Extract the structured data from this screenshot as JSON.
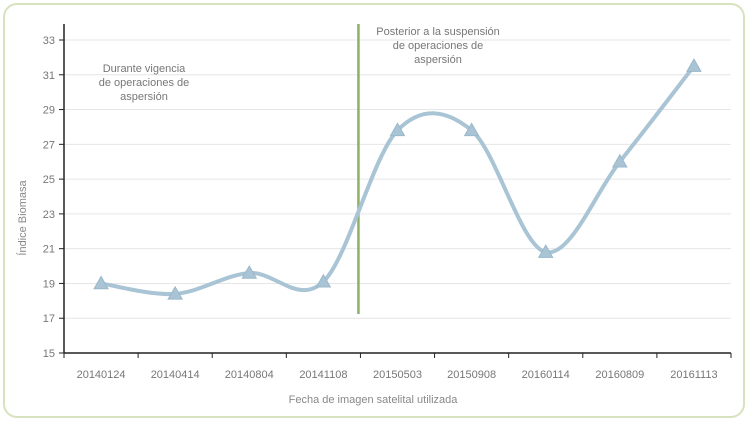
{
  "chart_data": {
    "type": "line",
    "title": "",
    "xlabel": "Fecha de imagen satelital utilizada",
    "ylabel": "Índice Biomasa",
    "categories": [
      "20140124",
      "20140414",
      "20140804",
      "20141108",
      "20150503",
      "20150908",
      "20160114",
      "20160809",
      "20161113"
    ],
    "series": [
      {
        "values": [
          19.0,
          18.4,
          19.6,
          19.1,
          27.8,
          27.8,
          20.8,
          26.0,
          31.5
        ]
      }
    ],
    "ylim": [
      15,
      33
    ],
    "yticks": [
      15,
      17,
      19,
      21,
      23,
      25,
      27,
      29,
      31,
      33
    ],
    "grid": true,
    "divider_after_category_index": 3,
    "annotations": [
      {
        "lines": [
          "Durante vigencia",
          "de operaciones de",
          "aspersión"
        ]
      },
      {
        "lines": [
          "Posterior a la suspensión",
          "de operaciones de",
          "aspersión"
        ]
      }
    ],
    "colors": {
      "series": "#a9c4d4",
      "marker": "#a9c4d4",
      "divider": "#8db164",
      "grid": "#e6e6e6",
      "axis": "#222222"
    }
  }
}
